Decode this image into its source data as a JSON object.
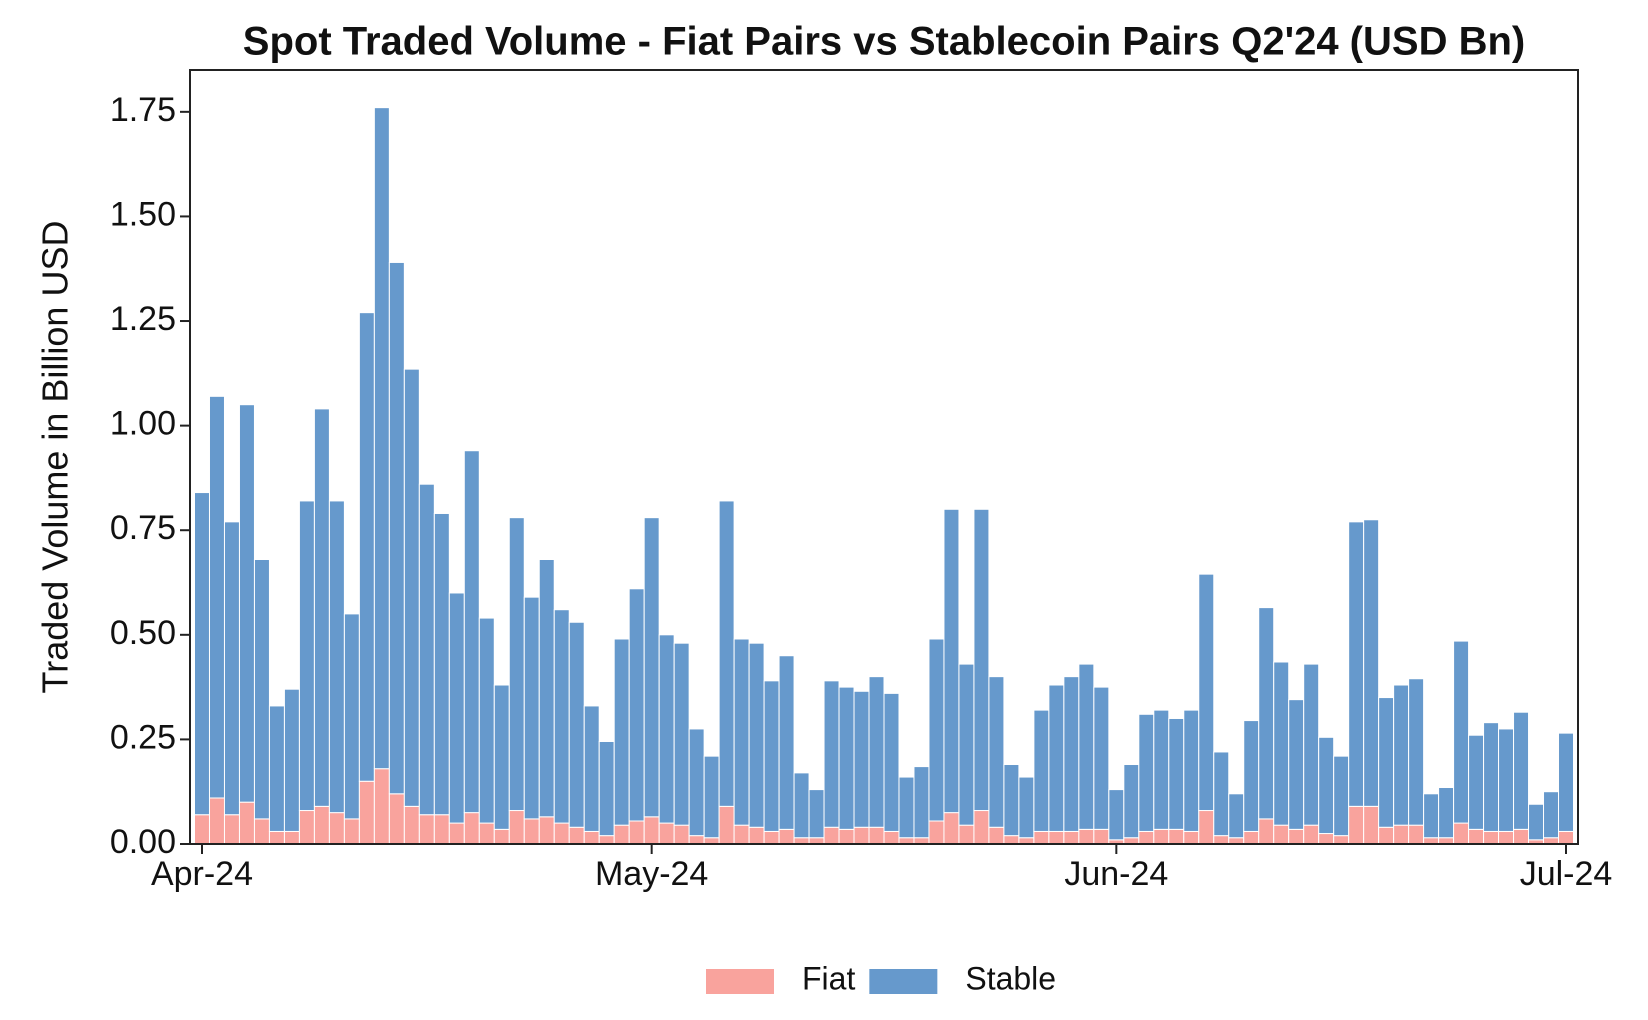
{
  "chart_data": {
    "type": "stacked-bar",
    "title": "Spot Traded Volume - Fiat Pairs vs Stablecoin Pairs Q2'24 (USD Bn)",
    "y_label": "Traded Volume in Billion USD",
    "categories": [
      "Apr-24",
      null,
      null,
      null,
      null,
      null,
      null,
      null,
      null,
      null,
      null,
      null,
      null,
      null,
      null,
      null,
      null,
      null,
      null,
      null,
      null,
      null,
      null,
      null,
      null,
      null,
      null,
      null,
      null,
      null,
      "May-24",
      null,
      null,
      null,
      null,
      null,
      null,
      null,
      null,
      null,
      null,
      null,
      null,
      null,
      null,
      null,
      null,
      null,
      null,
      null,
      null,
      null,
      null,
      null,
      null,
      null,
      null,
      null,
      null,
      null,
      null,
      "Jun-24",
      null,
      null,
      null,
      null,
      null,
      null,
      null,
      null,
      null,
      null,
      null,
      null,
      null,
      null,
      null,
      null,
      null,
      null,
      null,
      null,
      null,
      null,
      null,
      null,
      null,
      null,
      null,
      null,
      null,
      "Jul-24"
    ],
    "series": [
      {
        "name": "Fiat",
        "color": "#f9a39d",
        "values": [
          0.07,
          0.11,
          0.07,
          0.1,
          0.06,
          0.03,
          0.03,
          0.08,
          0.09,
          0.075,
          0.06,
          0.15,
          0.18,
          0.12,
          0.09,
          0.07,
          0.07,
          0.05,
          0.075,
          0.05,
          0.035,
          0.08,
          0.06,
          0.065,
          0.05,
          0.04,
          0.03,
          0.02,
          0.045,
          0.055,
          0.065,
          0.05,
          0.045,
          0.02,
          0.015,
          0.09,
          0.045,
          0.04,
          0.03,
          0.035,
          0.015,
          0.015,
          0.04,
          0.035,
          0.04,
          0.04,
          0.03,
          0.015,
          0.015,
          0.055,
          0.075,
          0.045,
          0.08,
          0.04,
          0.02,
          0.015,
          0.03,
          0.03,
          0.03,
          0.035,
          0.035,
          0.01,
          0.015,
          0.03,
          0.035,
          0.035,
          0.03,
          0.08,
          0.02,
          0.015,
          0.03,
          0.06,
          0.045,
          0.035,
          0.045,
          0.025,
          0.02,
          0.09,
          0.09,
          0.04,
          0.045,
          0.045,
          0.015,
          0.015,
          0.05,
          0.035,
          0.03,
          0.03,
          0.035,
          0.01,
          0.015,
          0.03
        ]
      },
      {
        "name": "Stable",
        "color": "#6699cc",
        "values": [
          0.77,
          0.96,
          0.7,
          0.95,
          0.62,
          0.3,
          0.34,
          0.74,
          0.95,
          0.745,
          0.49,
          1.12,
          1.58,
          1.27,
          1.045,
          0.79,
          0.72,
          0.55,
          0.865,
          0.49,
          0.345,
          0.7,
          0.53,
          0.615,
          0.51,
          0.49,
          0.3,
          0.225,
          0.445,
          0.555,
          0.715,
          0.45,
          0.435,
          0.255,
          0.195,
          0.73,
          0.445,
          0.44,
          0.36,
          0.415,
          0.155,
          0.115,
          0.35,
          0.34,
          0.325,
          0.36,
          0.33,
          0.145,
          0.17,
          0.435,
          0.725,
          0.385,
          0.72,
          0.36,
          0.17,
          0.145,
          0.29,
          0.35,
          0.37,
          0.395,
          0.34,
          0.12,
          0.175,
          0.28,
          0.285,
          0.265,
          0.29,
          0.565,
          0.2,
          0.105,
          0.265,
          0.505,
          0.39,
          0.31,
          0.385,
          0.23,
          0.19,
          0.68,
          0.685,
          0.31,
          0.335,
          0.35,
          0.105,
          0.12,
          0.435,
          0.225,
          0.26,
          0.245,
          0.28,
          0.085,
          0.11,
          0.235
        ]
      }
    ],
    "ylim": [
      0,
      1.85
    ],
    "yticks": [
      {
        "value": 0,
        "label": "0.00"
      },
      {
        "value": 0.25,
        "label": "0.25"
      },
      {
        "value": 0.5,
        "label": "0.50"
      },
      {
        "value": 0.75,
        "label": "0.75"
      },
      {
        "value": 1,
        "label": "1.00"
      },
      {
        "value": 1.25,
        "label": "1.25"
      },
      {
        "value": 1.5,
        "label": "1.50"
      },
      {
        "value": 1.75,
        "label": "1.75"
      }
    ],
    "legend": "bottom"
  }
}
